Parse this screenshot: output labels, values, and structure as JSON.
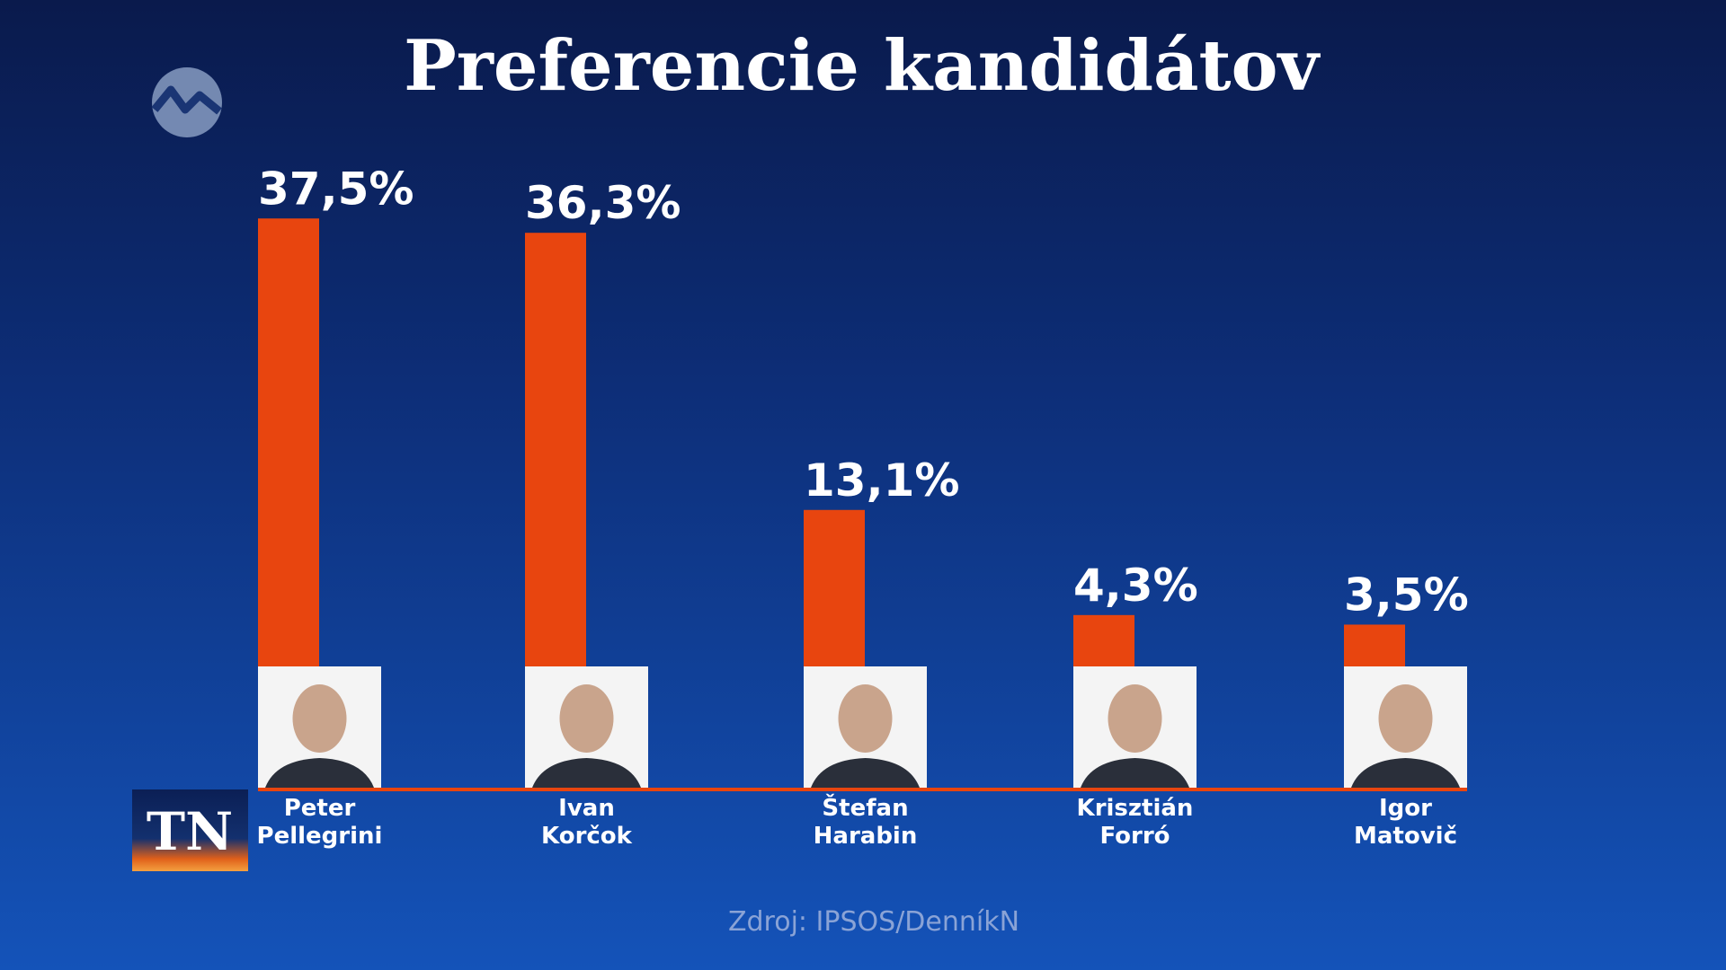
{
  "chart_data": {
    "type": "bar",
    "title": "Preferencie kandidátov",
    "categories": [
      "Peter Pellegrini",
      "Ivan Korčok",
      "Štefan Harabin",
      "Krisztián Forró",
      "Igor Matovič"
    ],
    "values": [
      37.5,
      36.3,
      13.1,
      4.3,
      3.5
    ],
    "value_labels": [
      "37,5%",
      "36,3%",
      "13,1%",
      "4,3%",
      "3,5%"
    ],
    "color": "#e8450f",
    "source": "Zdroj: IPSOS/DenníkN",
    "logo": "TN"
  }
}
